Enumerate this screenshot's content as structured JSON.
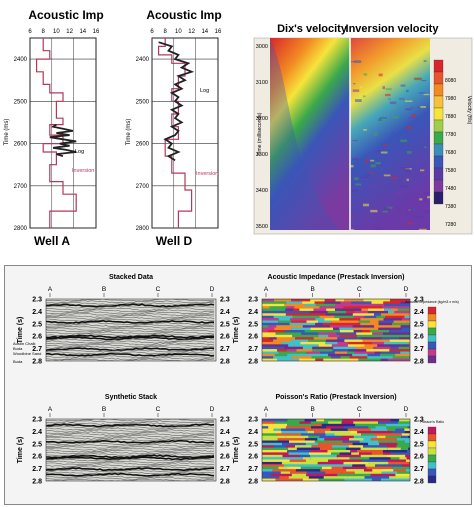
{
  "wells": [
    {
      "title": "Acoustic Imp",
      "name": "Well A",
      "x_ticks": [
        "6",
        "8",
        "10",
        "12",
        "14",
        "16"
      ],
      "y_ticks": [
        "2400",
        "2500",
        "2600",
        "2700",
        "2800"
      ],
      "y_axis_label": "Time (ms)",
      "annotations": [
        "Log",
        "Inversion"
      ],
      "ylim": [
        2350,
        2800
      ],
      "xlim": [
        6,
        16
      ],
      "inversion": [
        [
          2350,
          8
        ],
        [
          2380,
          8
        ],
        [
          2380,
          9
        ],
        [
          2400,
          9
        ],
        [
          2400,
          7
        ],
        [
          2430,
          7
        ],
        [
          2430,
          8
        ],
        [
          2460,
          8
        ],
        [
          2460,
          9
        ],
        [
          2480,
          9
        ],
        [
          2480,
          11
        ],
        [
          2500,
          11
        ],
        [
          2500,
          10
        ],
        [
          2540,
          10
        ],
        [
          2540,
          11
        ],
        [
          2555,
          11
        ],
        [
          2555,
          9
        ],
        [
          2580,
          9
        ],
        [
          2580,
          11
        ],
        [
          2600,
          11
        ],
        [
          2600,
          8
        ],
        [
          2620,
          8
        ],
        [
          2620,
          10
        ],
        [
          2650,
          10
        ],
        [
          2650,
          9
        ],
        [
          2690,
          9
        ],
        [
          2690,
          11
        ],
        [
          2720,
          11
        ],
        [
          2720,
          13
        ],
        [
          2760,
          13
        ],
        [
          2760,
          9
        ],
        [
          2800,
          9
        ]
      ],
      "log": [
        [
          2555,
          10
        ],
        [
          2560,
          9.5
        ],
        [
          2565,
          11
        ],
        [
          2570,
          12.5
        ],
        [
          2575,
          10
        ],
        [
          2580,
          12
        ],
        [
          2585,
          9
        ],
        [
          2590,
          11
        ],
        [
          2595,
          13
        ],
        [
          2600,
          10.5
        ],
        [
          2605,
          12
        ],
        [
          2610,
          9.5
        ],
        [
          2615,
          11.5
        ],
        [
          2620,
          13
        ],
        [
          2625,
          10
        ],
        [
          2630,
          11
        ]
      ]
    },
    {
      "title": "Acoustic Imp",
      "name": "Well D",
      "x_ticks": [
        "6",
        "8",
        "10",
        "12",
        "14",
        "16"
      ],
      "y_ticks": [
        "2400",
        "2500",
        "2600",
        "2700",
        "2800"
      ],
      "y_axis_label": "Time (ms)",
      "annotations": [
        "Log",
        "Inversion"
      ],
      "ylim": [
        2350,
        2800
      ],
      "xlim": [
        6,
        16
      ],
      "inversion": [
        [
          2350,
          8
        ],
        [
          2370,
          8
        ],
        [
          2370,
          7
        ],
        [
          2390,
          7
        ],
        [
          2390,
          9
        ],
        [
          2410,
          9
        ],
        [
          2410,
          11
        ],
        [
          2440,
          11
        ],
        [
          2440,
          10
        ],
        [
          2470,
          10
        ],
        [
          2470,
          9
        ],
        [
          2500,
          9
        ],
        [
          2500,
          10
        ],
        [
          2530,
          10
        ],
        [
          2530,
          9
        ],
        [
          2560,
          9
        ],
        [
          2560,
          10
        ],
        [
          2590,
          10
        ],
        [
          2590,
          8
        ],
        [
          2630,
          8
        ],
        [
          2630,
          9
        ],
        [
          2670,
          9
        ],
        [
          2670,
          11
        ],
        [
          2710,
          11
        ],
        [
          2710,
          12
        ],
        [
          2760,
          12
        ],
        [
          2760,
          10
        ],
        [
          2800,
          10
        ]
      ],
      "log": [
        [
          2360,
          7
        ],
        [
          2370,
          9
        ],
        [
          2380,
          8.5
        ],
        [
          2390,
          10
        ],
        [
          2400,
          9.5
        ],
        [
          2410,
          11.5
        ],
        [
          2420,
          10.5
        ],
        [
          2430,
          12
        ],
        [
          2440,
          10
        ],
        [
          2450,
          11
        ],
        [
          2460,
          9.5
        ],
        [
          2470,
          10.5
        ],
        [
          2480,
          9
        ],
        [
          2490,
          10
        ],
        [
          2500,
          9.5
        ],
        [
          2510,
          10.5
        ],
        [
          2520,
          9
        ],
        [
          2530,
          10
        ],
        [
          2540,
          9.5
        ],
        [
          2550,
          10.5
        ],
        [
          2560,
          9
        ],
        [
          2570,
          10
        ],
        [
          2580,
          9.5
        ],
        [
          2590,
          8
        ],
        [
          2600,
          9
        ],
        [
          2610,
          8.5
        ],
        [
          2620,
          10
        ],
        [
          2630,
          8.5
        ],
        [
          2640,
          9.5
        ]
      ]
    }
  ],
  "velocity": {
    "title_left": "Dix's velocity",
    "title_right": "Inversion velocity",
    "y_label": "Time (milliseconds)",
    "y_ticks": [
      "3000",
      "3100",
      "3200",
      "3300",
      "3400",
      "3500"
    ],
    "colorbar_label": "Velocity (ft/s)",
    "colorbar_ticks": [
      "7280",
      "7380",
      "7480",
      "7580",
      "7680",
      "7780",
      "7880",
      "7980",
      "8080"
    ],
    "colors": {
      "red": "#d8262b",
      "orange": "#f28a22",
      "yellow": "#f6e43b",
      "green": "#3aa84c",
      "blue": "#3a56b8",
      "purple": "#7b3aa0"
    }
  },
  "seismic": [
    {
      "title": "Stacked Data",
      "traces": [
        "A",
        "B",
        "C",
        "D"
      ],
      "y_ticks": [
        "2.3",
        "2.4",
        "2.5",
        "2.6",
        "2.7",
        "2.8"
      ],
      "y_label": "Time (s)",
      "annotations": [
        "Austin Chalk",
        "Buda",
        "Woodbine Sand",
        "Buda"
      ]
    },
    {
      "title": "Synthetic Stack",
      "traces": [
        "A",
        "B",
        "C",
        "D"
      ],
      "y_ticks": [
        "2.3",
        "2.4",
        "2.5",
        "2.6",
        "2.7",
        "2.8"
      ],
      "y_label": "Time (s)",
      "annotations": []
    },
    {
      "title": "Acoustic Impedance (Prestack Inversion)",
      "traces": [
        "A",
        "B",
        "C",
        "D"
      ],
      "y_ticks": [
        "2.3",
        "2.4",
        "2.5",
        "2.6",
        "2.7",
        "2.8"
      ],
      "y_label": "Time (s)",
      "colorbar_label": "Acoustic Impedance (kg/m3 x m/s)"
    },
    {
      "title": "Poisson's Ratio  (Prestack Inversion)",
      "traces": [
        "A",
        "B",
        "C",
        "D"
      ],
      "y_ticks": [
        "2.3",
        "2.4",
        "2.5",
        "2.6",
        "2.7",
        "2.8"
      ],
      "y_label": "Time (s)",
      "colorbar_label": "Poisson's Ratio"
    }
  ],
  "chart_data": [
    {
      "type": "line",
      "title": "Acoustic Imp",
      "xlabel": "",
      "ylabel": "Time (ms)",
      "xlim": [
        6,
        16
      ],
      "ylim": [
        2350,
        2800
      ],
      "series": [
        {
          "name": "Log"
        },
        {
          "name": "Inversion"
        }
      ]
    },
    {
      "type": "line",
      "title": "Acoustic Imp",
      "xlabel": "",
      "ylabel": "Time (ms)",
      "xlim": [
        6,
        16
      ],
      "ylim": [
        2350,
        2800
      ],
      "series": [
        {
          "name": "Log"
        },
        {
          "name": "Inversion"
        }
      ]
    },
    {
      "type": "heatmap",
      "title": "Dix's velocity / Inversion velocity",
      "ylabel": "Time (milliseconds)",
      "ylim": [
        3000,
        3500
      ],
      "colorbar": "Velocity (ft/s)"
    },
    {
      "type": "heatmap",
      "title": "Stacked Data",
      "ylabel": "Time (s)",
      "ylim": [
        2.3,
        2.8
      ]
    },
    {
      "type": "heatmap",
      "title": "Synthetic Stack",
      "ylabel": "Time (s)",
      "ylim": [
        2.3,
        2.8
      ]
    },
    {
      "type": "heatmap",
      "title": "Acoustic Impedance (Prestack Inversion)",
      "ylabel": "Time (s)",
      "ylim": [
        2.3,
        2.8
      ]
    },
    {
      "type": "heatmap",
      "title": "Poisson's Ratio  (Prestack Inversion)",
      "ylabel": "Time (s)",
      "ylim": [
        2.3,
        2.8
      ]
    }
  ]
}
